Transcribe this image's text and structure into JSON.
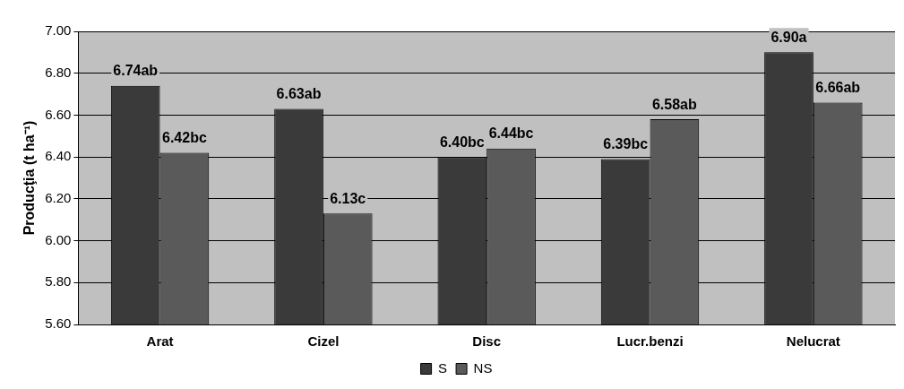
{
  "chart_data": {
    "type": "bar",
    "ylabel": "Producţia (t ha⁻¹)",
    "categories": [
      "Arat",
      "Cizel",
      "Disc",
      "Lucr.benzi",
      "Nelucrat"
    ],
    "series": [
      {
        "name": "S",
        "color": "#3a3a3a",
        "values": [
          6.74,
          6.63,
          6.4,
          6.39,
          6.9
        ],
        "value_labels": [
          "6.74ab",
          "6.63ab",
          "6.40bc",
          "6.39bc",
          "6.90a"
        ]
      },
      {
        "name": "NS",
        "color": "#5a5a5a",
        "values": [
          6.42,
          6.13,
          6.44,
          6.58,
          6.66
        ],
        "value_labels": [
          "6.42bc",
          "6.13c",
          "6.44bc",
          "6.58ab",
          "6.66ab"
        ]
      }
    ],
    "ylim": [
      5.6,
      7.0
    ],
    "yticks": [
      {
        "value": 5.6,
        "label": "5.60"
      },
      {
        "value": 5.8,
        "label": "5.80"
      },
      {
        "value": 6.0,
        "label": "6.00"
      },
      {
        "value": 6.2,
        "label": "6.20"
      },
      {
        "value": 6.4,
        "label": "6.40"
      },
      {
        "value": 6.6,
        "label": "6.60"
      },
      {
        "value": 6.8,
        "label": "6.80"
      },
      {
        "value": 7.0,
        "label": "7.00"
      }
    ],
    "grid": "y",
    "legend": "bottom"
  }
}
